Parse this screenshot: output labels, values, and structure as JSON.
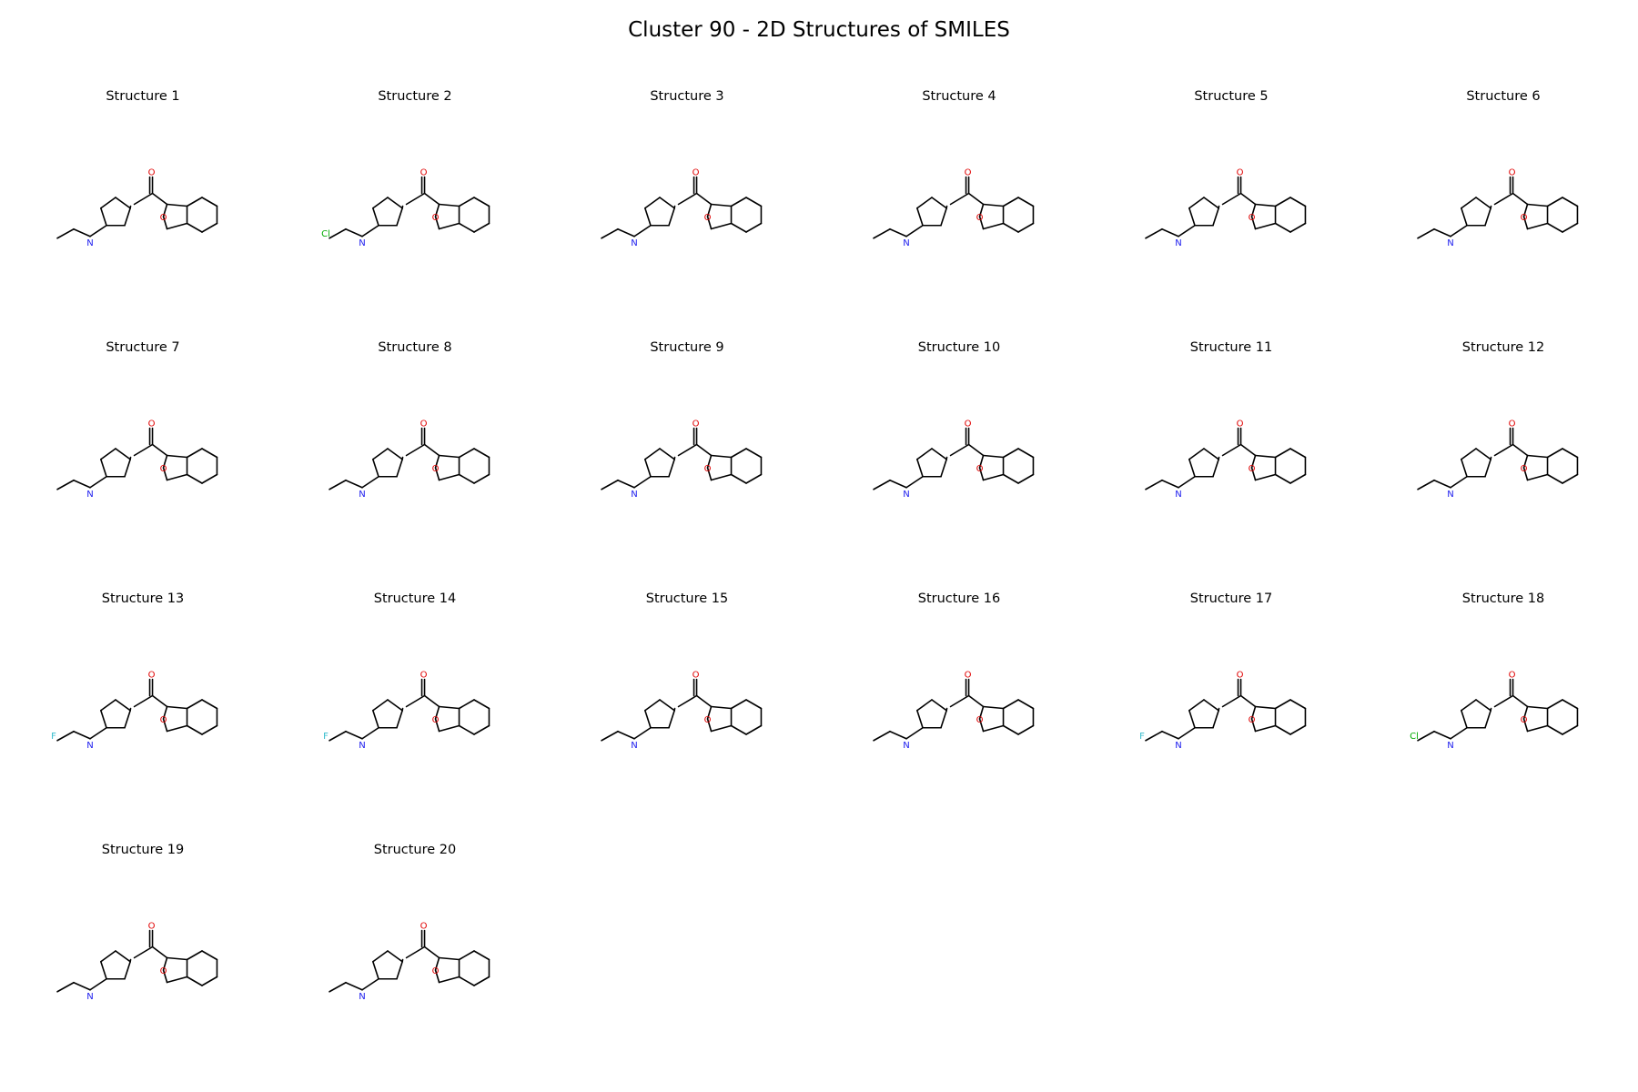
{
  "title": "Cluster 90 - 2D Structures of SMILES",
  "structures": [
    {
      "label": "Structure 1",
      "substituent": "amine",
      "halogen": ""
    },
    {
      "label": "Structure 2",
      "substituent": "amine",
      "halogen": "Cl"
    },
    {
      "label": "Structure 3",
      "substituent": "amine",
      "halogen": ""
    },
    {
      "label": "Structure 4",
      "substituent": "amine",
      "halogen": ""
    },
    {
      "label": "Structure 5",
      "substituent": "amine",
      "halogen": ""
    },
    {
      "label": "Structure 6",
      "substituent": "amine",
      "halogen": ""
    },
    {
      "label": "Structure 7",
      "substituent": "amine",
      "halogen": ""
    },
    {
      "label": "Structure 8",
      "substituent": "amine",
      "halogen": ""
    },
    {
      "label": "Structure 9",
      "substituent": "amine",
      "halogen": ""
    },
    {
      "label": "Structure 10",
      "substituent": "amine",
      "halogen": ""
    },
    {
      "label": "Structure 11",
      "substituent": "amine",
      "halogen": ""
    },
    {
      "label": "Structure 12",
      "substituent": "amine",
      "halogen": ""
    },
    {
      "label": "Structure 13",
      "substituent": "amine",
      "halogen": "F"
    },
    {
      "label": "Structure 14",
      "substituent": "amine",
      "halogen": "F"
    },
    {
      "label": "Structure 15",
      "substituent": "amine",
      "halogen": ""
    },
    {
      "label": "Structure 16",
      "substituent": "amine",
      "halogen": ""
    },
    {
      "label": "Structure 17",
      "substituent": "amine",
      "halogen": "F"
    },
    {
      "label": "Structure 18",
      "substituent": "amine",
      "halogen": "Cl"
    },
    {
      "label": "Structure 19",
      "substituent": "amine",
      "halogen": ""
    },
    {
      "label": "Structure 20",
      "substituent": "amine",
      "halogen": ""
    }
  ],
  "atom_colors": {
    "O": "#e00000",
    "N": "#1a1aee",
    "Cl": "#00aa00",
    "F": "#33bbcc"
  }
}
